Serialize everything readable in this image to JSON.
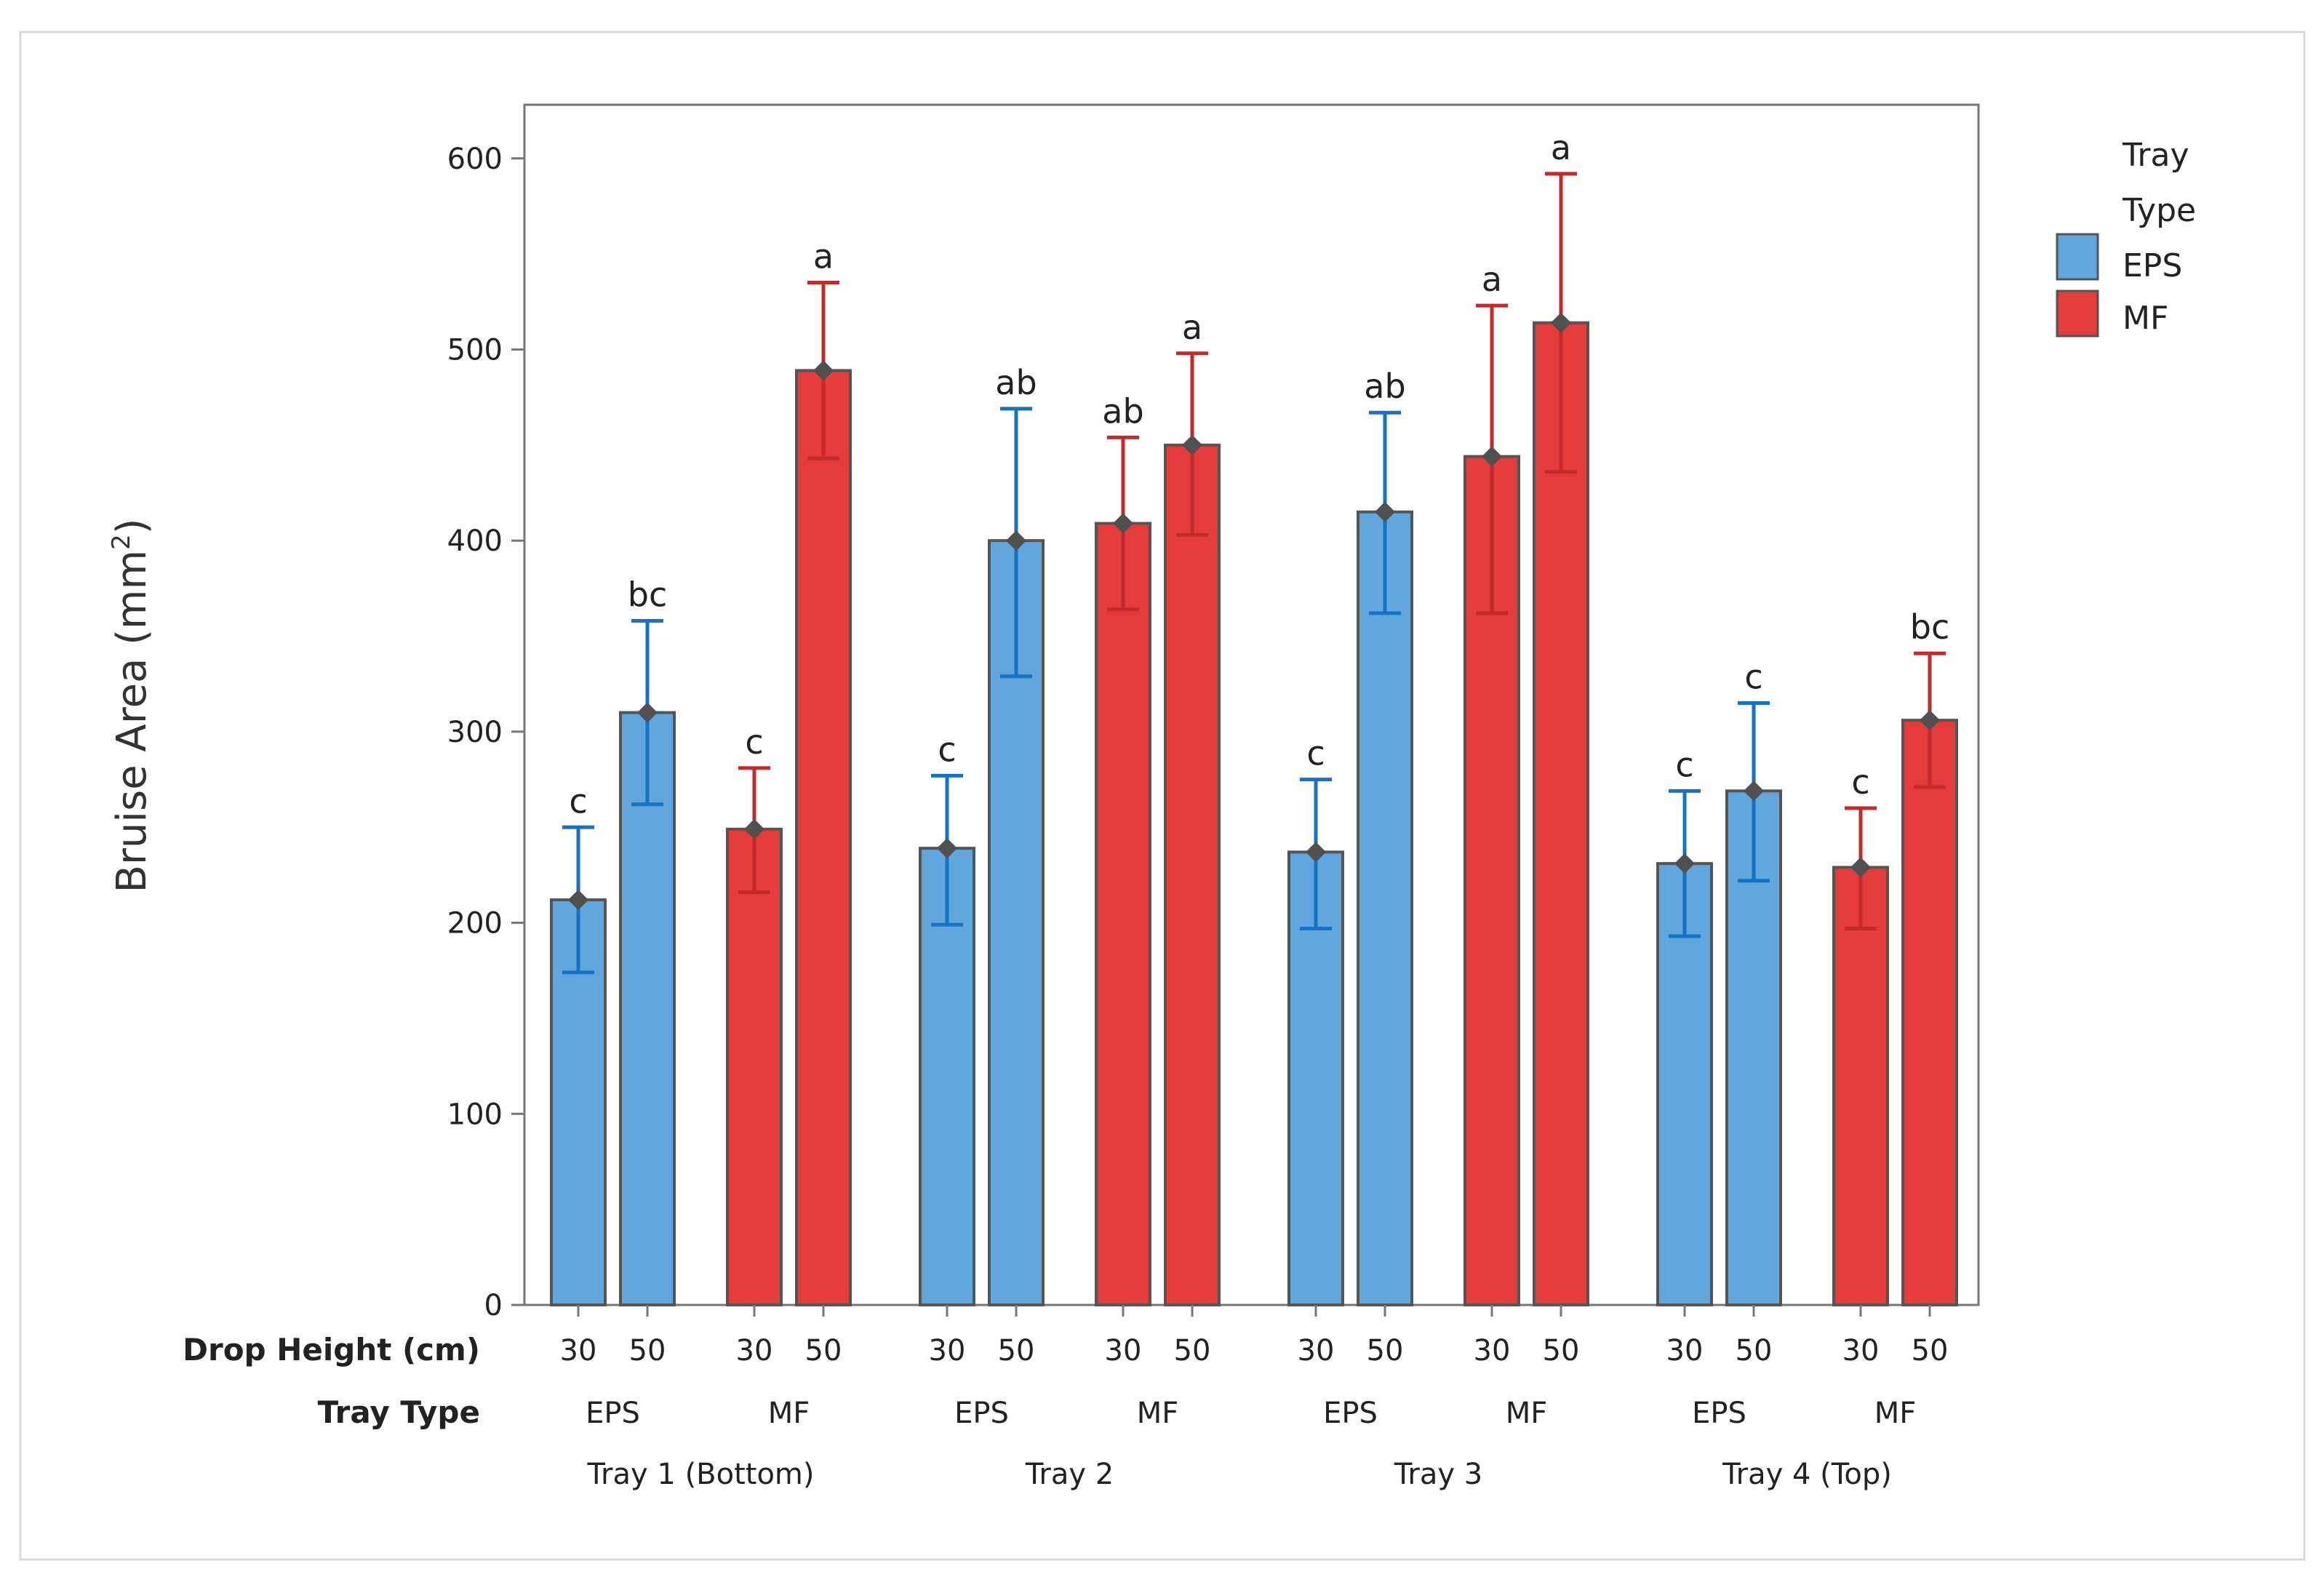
{
  "chart_data": {
    "type": "bar",
    "title": "",
    "ylabel_main": "Bruise Area (mm",
    "ylabel_sup": "2",
    "ylabel_close": ")",
    "ylim": [
      0,
      630
    ],
    "yticks": [
      0,
      100,
      200,
      300,
      400,
      500,
      600
    ],
    "row_labels": {
      "drop_height": "Drop Height (cm)",
      "tray_type": "Tray Type"
    },
    "legend": {
      "title_line1": "Tray",
      "title_line2": "Type",
      "entries": [
        {
          "name": "EPS",
          "color": "#62A6DE"
        },
        {
          "name": "MF",
          "color": "#E53B3B"
        }
      ]
    },
    "colors": {
      "EPS": {
        "fill": "#62A6DE",
        "error": "#1572C5"
      },
      "MF": {
        "fill": "#E53B3B",
        "error": "#C42A2A"
      },
      "bar_edge": "#555555",
      "mean_marker": "#505050"
    },
    "groups": [
      {
        "tray": "Tray 1 (Bottom)",
        "subgroups": [
          {
            "type": "EPS",
            "bars": [
              {
                "height": "30",
                "value": 212,
                "err_low": 174,
                "err_high": 250,
                "letter": "c"
              },
              {
                "height": "50",
                "value": 310,
                "err_low": 262,
                "err_high": 358,
                "letter": "bc"
              }
            ]
          },
          {
            "type": "MF",
            "bars": [
              {
                "height": "30",
                "value": 249,
                "err_low": 216,
                "err_high": 281,
                "letter": "c"
              },
              {
                "height": "50",
                "value": 489,
                "err_low": 443,
                "err_high": 535,
                "letter": "a"
              }
            ]
          }
        ]
      },
      {
        "tray": "Tray 2",
        "subgroups": [
          {
            "type": "EPS",
            "bars": [
              {
                "height": "30",
                "value": 239,
                "err_low": 199,
                "err_high": 277,
                "letter": "c"
              },
              {
                "height": "50",
                "value": 400,
                "err_low": 329,
                "err_high": 469,
                "letter": "ab"
              }
            ]
          },
          {
            "type": "MF",
            "bars": [
              {
                "height": "30",
                "value": 409,
                "err_low": 364,
                "err_high": 454,
                "letter": "ab"
              },
              {
                "height": "50",
                "value": 450,
                "err_low": 403,
                "err_high": 498,
                "letter": "a"
              }
            ]
          }
        ]
      },
      {
        "tray": "Tray 3",
        "subgroups": [
          {
            "type": "EPS",
            "bars": [
              {
                "height": "30",
                "value": 237,
                "err_low": 197,
                "err_high": 275,
                "letter": "c"
              },
              {
                "height": "50",
                "value": 415,
                "err_low": 362,
                "err_high": 467,
                "letter": "ab"
              }
            ]
          },
          {
            "type": "MF",
            "bars": [
              {
                "height": "30",
                "value": 444,
                "err_low": 362,
                "err_high": 523,
                "letter": "a"
              },
              {
                "height": "50",
                "value": 514,
                "err_low": 436,
                "err_high": 592,
                "letter": "a"
              }
            ]
          }
        ]
      },
      {
        "tray": "Tray 4 (Top)",
        "subgroups": [
          {
            "type": "EPS",
            "bars": [
              {
                "height": "30",
                "value": 231,
                "err_low": 193,
                "err_high": 269,
                "letter": "c"
              },
              {
                "height": "50",
                "value": 269,
                "err_low": 222,
                "err_high": 315,
                "letter": "c"
              }
            ]
          },
          {
            "type": "MF",
            "bars": [
              {
                "height": "30",
                "value": 229,
                "err_low": 197,
                "err_high": 260,
                "letter": "c"
              },
              {
                "height": "50",
                "value": 306,
                "err_low": 271,
                "err_high": 341,
                "letter": "bc"
              }
            ]
          }
        ]
      }
    ]
  }
}
